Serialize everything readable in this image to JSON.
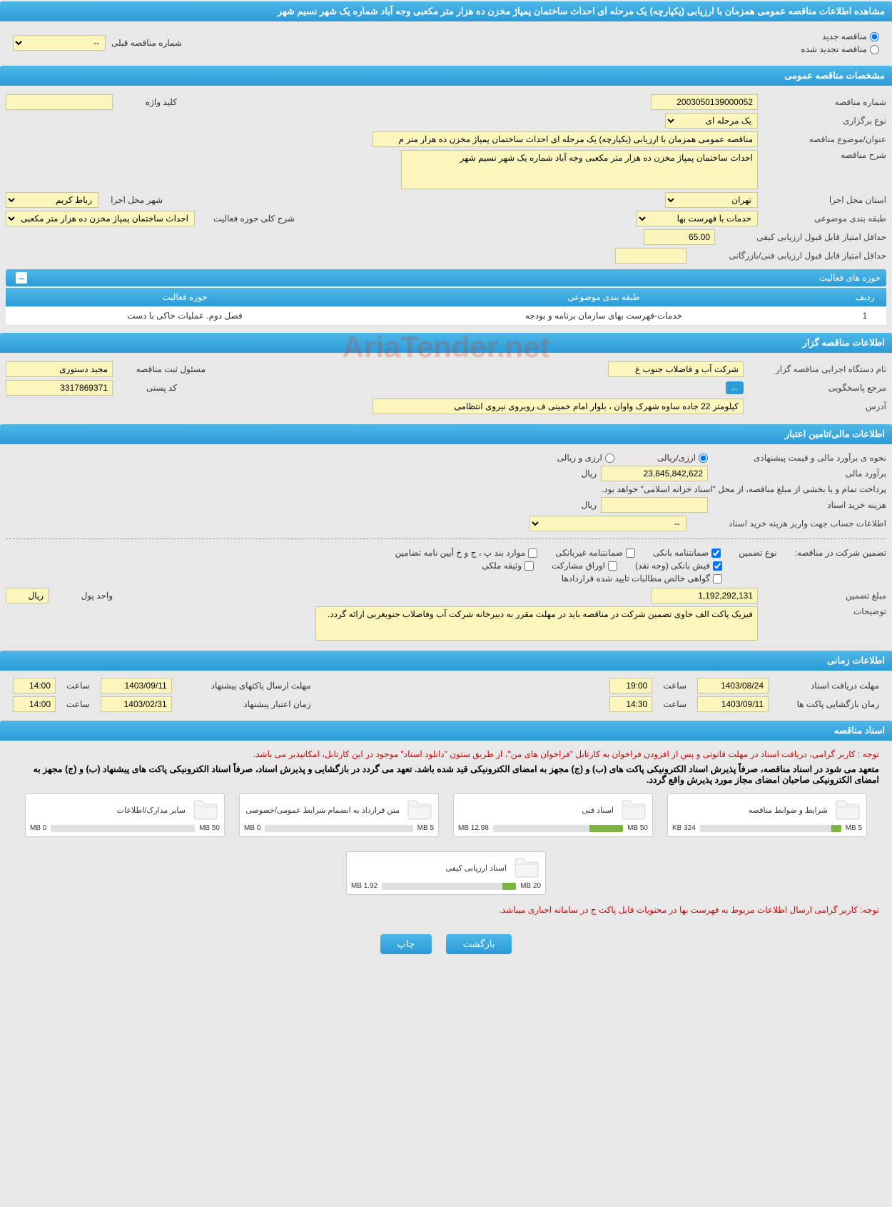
{
  "page_title": "مشاهده اطلاعات مناقصه عمومی همزمان با ارزیابی (یکپارچه) یک مرحله ای احداث ساختمان پمپاژ مخزن ده هزار متر مکعبی وجه آباد شماره یک شهر نسیم شهر",
  "radios": {
    "new_tender": "مناقصه جدید",
    "renewed_tender": "مناقصه تجدید شده",
    "prev_tender_label": "شماره مناقصه قبلی",
    "prev_tender_value": "--"
  },
  "sections": {
    "general": "مشخصات مناقصه عمومی",
    "organizer": "اطلاعات مناقصه گزار",
    "financial": "اطلاعات مالی/تامین اعتبار",
    "timing": "اطلاعات زمانی",
    "documents": "اسناد مناقصه"
  },
  "general": {
    "tender_no_label": "شماره مناقصه",
    "tender_no": "2003050139000052",
    "keyword_label": "کلید واژه",
    "keyword": "",
    "type_label": "نوع برگزاری",
    "type": "یک مرحله ای",
    "subject_label": "عنوان/موضوع مناقصه",
    "subject": "مناقصه عمومی همزمان با ارزیابی (یکپارچه) یک مرحله ای احداث ساختمان پمپاژ مخزن ده هزار متر م",
    "desc_label": "شرح مناقصه",
    "desc": "احداث ساختمان پمپاژ مخزن ده هزار متر مکعبی وجه آباد شماره یک شهر نسیم شهر",
    "province_label": "استان محل اجرا",
    "province": "تهران",
    "city_label": "شهر محل اجرا",
    "city": "رباط کریم",
    "category_label": "طبقه بندی موضوعی",
    "category": "خدمات با فهرست بها",
    "activity_desc_label": "شرح کلی حوزه فعالیت",
    "activity_desc": "احداث ساختمان پمپاژ مخزن ده هزار متر مکعبی",
    "min_quality_label": "حداقل امتیاز قابل قبول ارزیابی کیفی",
    "min_quality": "65.00",
    "min_tech_label": "حداقل امتیاز قابل قبول ارزیابی فنی/بازرگانی",
    "min_tech": ""
  },
  "activity_table": {
    "title": "حوزه های فعالیت",
    "headers": {
      "row": "ردیف",
      "category": "طبقه بندی موضوعی",
      "area": "حوزه فعالیت"
    },
    "row1": {
      "idx": "1",
      "cat": "خدمات-فهرست بهای سازمان برنامه و بودجه",
      "area": "فصل دوم. عملیات خاکی با دست"
    }
  },
  "organizer": {
    "exec_label": "نام دستگاه اجرایی مناقصه گزار",
    "exec": "شرکت آب و فاضلاب جنوب غ",
    "responsible_label": "مسئول ثبت مناقصه",
    "responsible": "مجید دستوری",
    "contact_label": "مرجع پاسخگویی",
    "contact_btn": "...",
    "postal_label": "کد پستی",
    "postal": "3317869371",
    "address_label": "آدرس",
    "address": "کیلومتر 22 جاده ساوه شهرک واوان ، بلوار امام خمینی ف روبروی نیروی انتظامی"
  },
  "financial": {
    "method_label": "نحوه ی برآورد مالی و قیمت پیشنهادی",
    "fx_rial": "ارزی/ریالی",
    "fx_and_rial": "ارزی و ریالی",
    "estimate_label": "برآورد مالی",
    "estimate": "23,845,842,622",
    "unit": "ریال",
    "payment_note": "پرداخت تمام و یا بخشی از مبلغ مناقصه، از محل \"اسناد خزانه اسلامی\" خواهد بود.",
    "doc_cost_label": "هزینه خرید اسناد",
    "doc_cost": "",
    "account_label": "اطلاعات حساب جهت واریز هزینه خرید اسناد",
    "account_value": "--",
    "guarantee_label": "تضمین شرکت در مناقصه:",
    "guarantee_type": "نوع تضمین",
    "chk_bank_guarantee": "ضمانتنامه بانکی",
    "chk_nonbank_guarantee": "ضمانتنامه غیربانکی",
    "chk_items": "موارد بند پ ، ج و خ آیین نامه تضامین",
    "chk_bank_receipt": "فیش بانکی (وجه نقد)",
    "chk_participation": "اوراق مشارکت",
    "chk_property": "وثیقه ملکی",
    "chk_approved_claims": "گواهی خالص مطالبات تایید شده قراردادها",
    "amount_label": "مبلغ تضمین",
    "amount": "1,192,292,131",
    "amount_unit_label": "واحد پول",
    "amount_unit": "ریال",
    "notes_label": "توضیحات",
    "notes": "فیزیک پاکت الف حاوی تضمین شرکت در مناقصه باید در مهلت مقرر به دبیرخانه شرکت آب وفاضلاب جنوبغربی ارائه گردد."
  },
  "timing": {
    "receive_label": "مهلت دریافت اسناد",
    "receive_date": "1403/08/24",
    "time_label": "ساعت",
    "receive_time": "19:00",
    "proposal_label": "مهلت ارسال پاکتهای پیشنهاد",
    "proposal_date": "1403/09/11",
    "proposal_time": "14:00",
    "opening_label": "زمان بازگشایی پاکت ها",
    "opening_date": "1403/09/11",
    "opening_time": "14:30",
    "validity_label": "زمان اعتبار پیشنهاد",
    "validity_date": "1403/02/31",
    "validity_time": "14:00"
  },
  "docs": {
    "notice1": "توجه : کاربر گرامی، دریافت اسناد در مهلت قانونی و پس از افزودن فراخوان به کارتابل \"فراخوان های من\"، از طریق ستون \"دانلود اسناد\" موجود در این کارتابل، امکانپذیر می باشد.",
    "notice2": "متعهد می شود در اسناد مناقصه، صرفاً پذیرش اسناد الکترونیکی پاکت های (ب) و (ج) مجهز به امضای الکترونیکی قید شده باشد. تعهد می گردد در بازگشایی و پذیرش اسناد، صرفاً اسناد الکترونیکی پاکت های پیشنهاد (ب) و (ج) مجهز به امضای الکترونیکی صاحبان امضای مجاز مورد پذیرش واقع گردد.",
    "notice3": "توجه: کاربر گرامی ارسال اطلاعات مربوط به فهرست بها در محتویات فایل پاکت ج در سامانه اجباری میباشد.",
    "files": [
      {
        "title": "شرایط و ضوابط مناقصه",
        "used": "324 KB",
        "total": "5 MB",
        "pct": 7
      },
      {
        "title": "اسناد فنی",
        "used": "12.98 MB",
        "total": "50 MB",
        "pct": 26
      },
      {
        "title": "متن قرارداد به انضمام شرایط عمومی/خصوصی",
        "used": "0 MB",
        "total": "5 MB",
        "pct": 0
      },
      {
        "title": "سایر مدارک/اطلاعات",
        "used": "0 MB",
        "total": "50 MB",
        "pct": 0
      },
      {
        "title": "اسناد ارزیابی کیفی",
        "used": "1.92 MB",
        "total": "20 MB",
        "pct": 10
      }
    ]
  },
  "buttons": {
    "back": "بازگشت",
    "print": "چاپ"
  },
  "watermark": "AriaTender.net",
  "colors": {
    "header_grad_top": "#4db8e8",
    "header_grad_bot": "#2b9cd8",
    "bg": "#e8e8e8",
    "input_bg": "#fcf6bd",
    "input_border": "#c5c5a0",
    "red": "#d00",
    "progress_fill": "#7cb342"
  }
}
